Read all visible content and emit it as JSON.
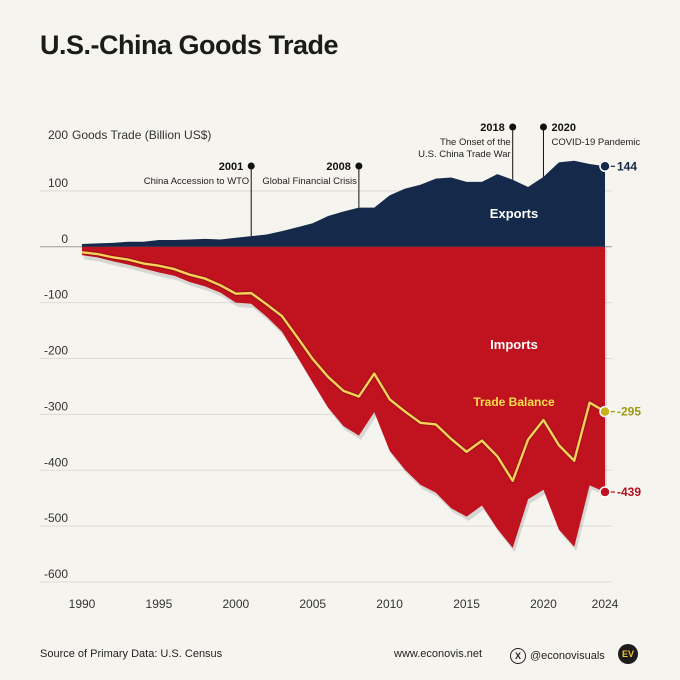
{
  "title": "U.S.-China Goods Trade",
  "chart_data": {
    "type": "area",
    "title": "U.S.-China Goods Trade",
    "ylabel": "Goods Trade (Billion US$)",
    "xlabel": "",
    "xlim": [
      1990,
      2024
    ],
    "ylim": [
      -600,
      200
    ],
    "x_ticks": [
      1990,
      1995,
      2000,
      2005,
      2010,
      2015,
      2020,
      2024
    ],
    "y_ticks": [
      200,
      100,
      0,
      -100,
      -200,
      -300,
      -400,
      -500,
      -600
    ],
    "x": [
      1990,
      1991,
      1992,
      1993,
      1994,
      1995,
      1996,
      1997,
      1998,
      1999,
      2000,
      2001,
      2002,
      2003,
      2004,
      2005,
      2006,
      2007,
      2008,
      2009,
      2010,
      2011,
      2012,
      2013,
      2014,
      2015,
      2016,
      2017,
      2018,
      2019,
      2020,
      2021,
      2022,
      2023,
      2024
    ],
    "series": [
      {
        "name": "Exports",
        "color": "#15294a",
        "values": [
          5,
          6,
          7,
          9,
          9,
          12,
          12,
          13,
          14,
          13,
          16,
          19,
          22,
          28,
          35,
          42,
          55,
          63,
          70,
          70,
          92,
          104,
          111,
          122,
          124,
          116,
          116,
          130,
          120,
          107,
          125,
          151,
          154,
          148,
          144
        ]
      },
      {
        "name": "Imports",
        "color": "#c0121f",
        "values": [
          -15,
          -19,
          -26,
          -32,
          -39,
          -46,
          -52,
          -63,
          -71,
          -82,
          -100,
          -102,
          -125,
          -152,
          -197,
          -243,
          -288,
          -321,
          -338,
          -296,
          -365,
          -399,
          -426,
          -440,
          -468,
          -483,
          -463,
          -505,
          -539,
          -452,
          -435,
          -506,
          -537,
          -427,
          -439
        ]
      },
      {
        "name": "Trade Balance",
        "color": "#f5d25a",
        "values": [
          -10,
          -13,
          -19,
          -23,
          -30,
          -34,
          -40,
          -50,
          -57,
          -69,
          -84,
          -83,
          -103,
          -124,
          -162,
          -201,
          -233,
          -258,
          -268,
          -227,
          -273,
          -295,
          -315,
          -318,
          -344,
          -367,
          -347,
          -375,
          -419,
          -345,
          -310,
          -355,
          -383,
          -279,
          -295
        ]
      }
    ],
    "end_labels": {
      "Exports": "144",
      "Imports": "-439",
      "Trade Balance": "-295"
    },
    "area_labels": {
      "Exports": "Exports",
      "Imports": "Imports",
      "Trade Balance": "Trade Balance"
    },
    "annotations": [
      {
        "year": 2001,
        "year_label": "2001",
        "text": [
          "China Accession to WTO"
        ]
      },
      {
        "year": 2008,
        "year_label": "2008",
        "text": [
          "Global Financial Crisis"
        ]
      },
      {
        "year": 2018,
        "year_label": "2018",
        "text": [
          "The Onset of the",
          "U.S. China Trade War"
        ]
      },
      {
        "year": 2020,
        "year_label": "2020",
        "text": [
          "COVID-19 Pandemic"
        ]
      }
    ]
  },
  "footer": {
    "source": "Source of Primary Data: U.S. Census",
    "website": "www.econovis.net",
    "social": "@econovisuals",
    "social_icon": "x-icon",
    "logo_text": "EV"
  }
}
